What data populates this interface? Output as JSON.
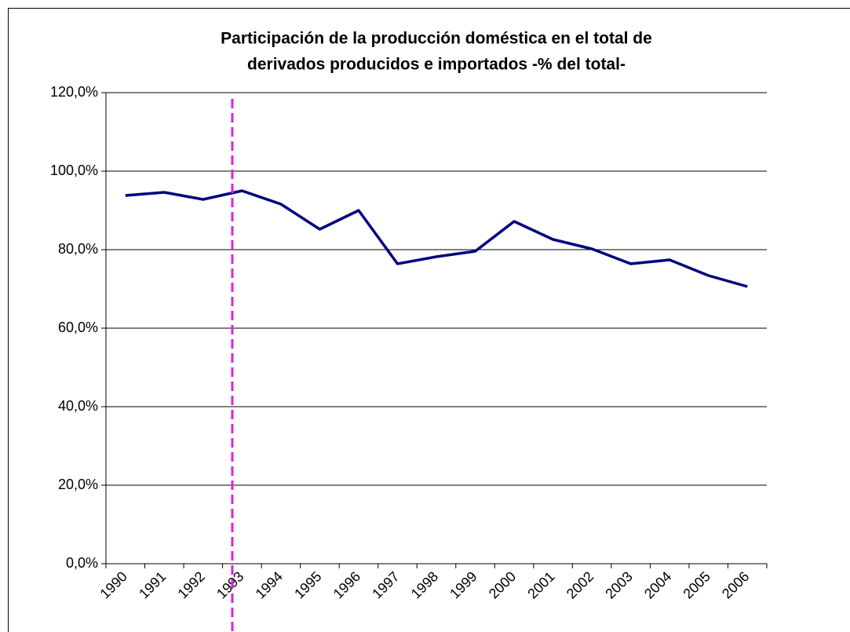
{
  "chart_data": {
    "type": "line",
    "title": [
      "Participación de la producción doméstica en el total de",
      "derivados producidos e importados -% del total-"
    ],
    "categories": [
      "1990",
      "1991",
      "1992",
      "1993",
      "1994",
      "1995",
      "1996",
      "1997",
      "1998",
      "1999",
      "2000",
      "2001",
      "2002",
      "2003",
      "2004",
      "2005",
      "2006"
    ],
    "series": [
      {
        "name": "Participación",
        "color": "#000080",
        "values": [
          93.8,
          94.6,
          92.8,
          95.0,
          91.6,
          85.2,
          90.0,
          76.4,
          78.2,
          79.6,
          87.2,
          82.6,
          80.2,
          76.4,
          77.4,
          73.4,
          70.6
        ]
      }
    ],
    "ylim": [
      0,
      120
    ],
    "yticks": [
      {
        "value": 0,
        "label": "0,0%"
      },
      {
        "value": 20,
        "label": "20,0%"
      },
      {
        "value": 40,
        "label": "40,0%"
      },
      {
        "value": 60,
        "label": "60,0%"
      },
      {
        "value": 80,
        "label": "80,0%"
      },
      {
        "value": 100,
        "label": "100,0%"
      },
      {
        "value": 120,
        "label": "120,0%"
      }
    ],
    "grid": true,
    "reference_line": {
      "x": 3.25,
      "color": "#e020e0"
    }
  }
}
